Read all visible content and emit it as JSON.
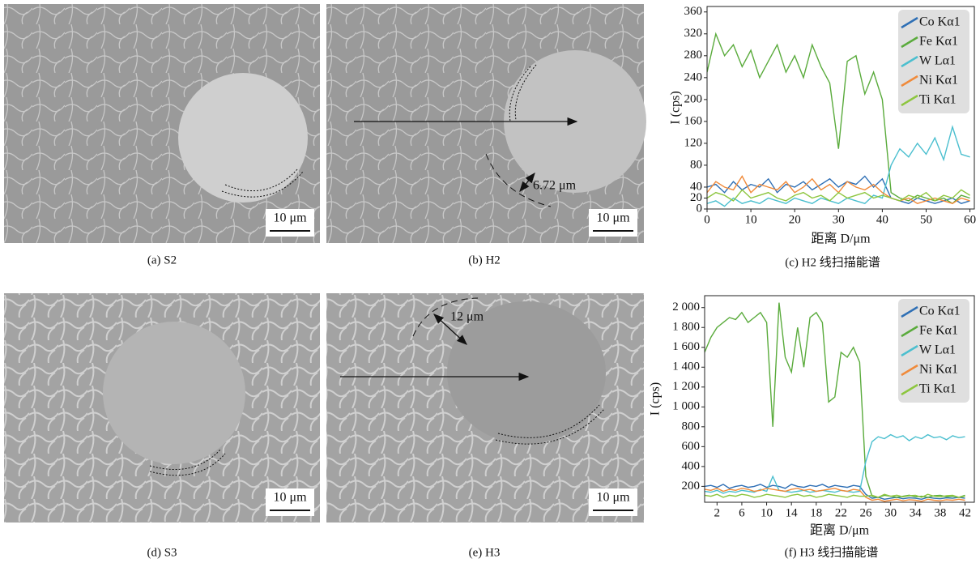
{
  "figures": [
    {
      "caption": "(a) S2",
      "scale_bar": "10 μm"
    },
    {
      "caption": "(b) H2",
      "scale_bar": "10 μm",
      "annotation": "6.72 μm"
    },
    {
      "caption": "(d) S3",
      "scale_bar": "10 μm"
    },
    {
      "caption": "(e) H3",
      "scale_bar": "10 μm",
      "annotation": "12 μm"
    }
  ],
  "chart_data": [
    {
      "type": "line",
      "caption": "(c) H2 线扫描能谱",
      "xlabel": "距离 D/μm",
      "ylabel": "I (cps)",
      "xlim": [
        0,
        61
      ],
      "ylim": [
        0,
        370
      ],
      "xticks": [
        0,
        10,
        20,
        30,
        40,
        50,
        60
      ],
      "yticks": [
        0,
        20,
        40,
        80,
        120,
        160,
        200,
        240,
        280,
        320,
        360
      ],
      "legend": "upper right",
      "x": [
        0,
        2,
        4,
        6,
        8,
        10,
        12,
        14,
        16,
        18,
        20,
        22,
        24,
        26,
        28,
        30,
        32,
        34,
        36,
        38,
        40,
        42,
        44,
        46,
        48,
        50,
        52,
        54,
        56,
        58,
        60
      ],
      "series": [
        {
          "name": "Co Kα1",
          "color": "#2e6fb5",
          "values": [
            40,
            45,
            30,
            50,
            35,
            45,
            40,
            55,
            30,
            45,
            40,
            50,
            35,
            45,
            55,
            40,
            50,
            45,
            60,
            40,
            55,
            20,
            15,
            10,
            20,
            15,
            10,
            15,
            20,
            10,
            15
          ]
        },
        {
          "name": "Fe Kα1",
          "color": "#5aab3c",
          "values": [
            250,
            320,
            280,
            300,
            260,
            290,
            240,
            270,
            300,
            250,
            280,
            240,
            300,
            260,
            230,
            110,
            270,
            280,
            210,
            250,
            200,
            30,
            20,
            15,
            25,
            20,
            15,
            20,
            10,
            25,
            20
          ]
        },
        {
          "name": "W Lα1",
          "color": "#4bbfcf",
          "values": [
            10,
            15,
            5,
            20,
            10,
            15,
            10,
            20,
            15,
            10,
            20,
            15,
            10,
            20,
            15,
            10,
            20,
            15,
            10,
            25,
            20,
            80,
            110,
            95,
            120,
            100,
            130,
            90,
            150,
            100,
            95
          ]
        },
        {
          "name": "Ni Kα1",
          "color": "#f08a3a",
          "values": [
            30,
            50,
            40,
            35,
            60,
            30,
            45,
            40,
            35,
            50,
            30,
            40,
            55,
            35,
            45,
            30,
            50,
            40,
            35,
            45,
            30,
            20,
            15,
            20,
            10,
            15,
            20,
            15,
            10,
            20,
            15
          ]
        },
        {
          "name": "Ti Kα1",
          "color": "#8dc63f",
          "values": [
            20,
            30,
            25,
            15,
            35,
            20,
            25,
            30,
            20,
            15,
            25,
            30,
            20,
            25,
            15,
            30,
            20,
            25,
            30,
            20,
            25,
            20,
            15,
            25,
            20,
            30,
            15,
            25,
            20,
            35,
            25
          ]
        }
      ]
    },
    {
      "type": "line",
      "caption": "(f) H3 线扫描能谱",
      "xlabel": "距离 D/μm",
      "ylabel": "I (cps)",
      "xlim": [
        0,
        43.5
      ],
      "ylim": [
        40,
        2120
      ],
      "xticks": [
        2,
        6,
        10,
        14,
        18,
        22,
        26,
        30,
        34,
        38,
        42
      ],
      "yticks": [
        200,
        400,
        600,
        800,
        {
          "value": 1000,
          "label": "1 000"
        },
        {
          "value": 1200,
          "label": "1 200"
        },
        {
          "value": 1400,
          "label": "1 400"
        },
        {
          "value": 1600,
          "label": "1 600"
        },
        {
          "value": 1800,
          "label": "1 800"
        },
        {
          "value": 2000,
          "label": "2 000"
        }
      ],
      "legend": "upper right",
      "x": [
        0,
        1,
        2,
        3,
        4,
        5,
        6,
        7,
        8,
        9,
        10,
        11,
        12,
        13,
        14,
        15,
        16,
        17,
        18,
        19,
        20,
        21,
        22,
        23,
        24,
        25,
        26,
        27,
        28,
        29,
        30,
        31,
        32,
        33,
        34,
        35,
        36,
        37,
        38,
        39,
        40,
        41,
        42
      ],
      "series": [
        {
          "name": "Co Kα1",
          "color": "#2e6fb5",
          "values": [
            200,
            210,
            190,
            220,
            180,
            200,
            210,
            190,
            200,
            220,
            190,
            210,
            200,
            180,
            220,
            200,
            190,
            210,
            200,
            220,
            190,
            210,
            200,
            190,
            210,
            200,
            120,
            80,
            90,
            70,
            80,
            90,
            75,
            85,
            80,
            70,
            90,
            80,
            75,
            85,
            80,
            90,
            80
          ]
        },
        {
          "name": "Fe Kα1",
          "color": "#5aab3c",
          "values": [
            1550,
            1700,
            1800,
            1850,
            1900,
            1880,
            1950,
            1850,
            1900,
            1950,
            1850,
            800,
            2050,
            1500,
            1350,
            1800,
            1400,
            1900,
            1950,
            1850,
            1050,
            1100,
            1550,
            1500,
            1600,
            1450,
            300,
            100,
            90,
            110,
            100,
            90,
            100,
            110,
            95,
            100,
            90,
            105,
            110,
            95,
            100,
            90,
            110
          ]
        },
        {
          "name": "W Lα1",
          "color": "#4bbfcf",
          "values": [
            150,
            140,
            160,
            130,
            150,
            140,
            160,
            150,
            140,
            170,
            150,
            300,
            160,
            150,
            140,
            150,
            160,
            140,
            150,
            160,
            150,
            140,
            160,
            150,
            140,
            150,
            450,
            650,
            700,
            680,
            720,
            690,
            710,
            660,
            700,
            680,
            720,
            690,
            700,
            670,
            710,
            690,
            700
          ]
        },
        {
          "name": "Ni Kα1",
          "color": "#f08a3a",
          "values": [
            170,
            160,
            180,
            150,
            170,
            160,
            180,
            170,
            150,
            160,
            180,
            170,
            160,
            150,
            170,
            180,
            160,
            170,
            150,
            160,
            170,
            180,
            160,
            150,
            170,
            160,
            90,
            60,
            70,
            50,
            60,
            70,
            55,
            65,
            60,
            50,
            70,
            60,
            55,
            65,
            60,
            70,
            60
          ]
        },
        {
          "name": "Ti Kα1",
          "color": "#8dc63f",
          "values": [
            110,
            100,
            120,
            90,
            110,
            100,
            120,
            110,
            90,
            100,
            120,
            110,
            100,
            90,
            110,
            120,
            100,
            110,
            90,
            100,
            120,
            110,
            100,
            90,
            110,
            100,
            100,
            110,
            90,
            120,
            100,
            110,
            95,
            105,
            110,
            90,
            120,
            100,
            95,
            105,
            110,
            90,
            100
          ]
        }
      ]
    }
  ]
}
